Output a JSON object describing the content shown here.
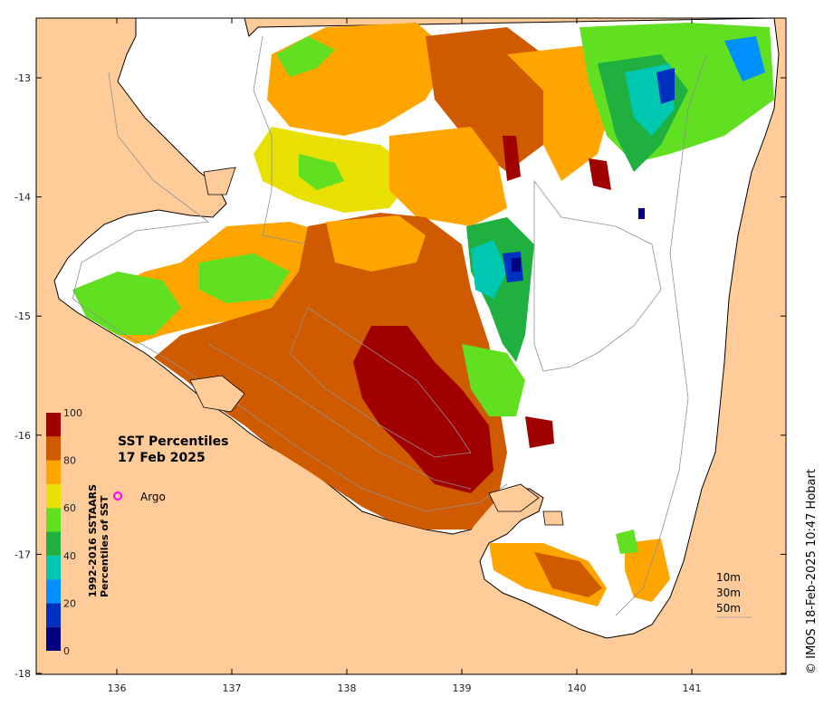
{
  "title_line1": "SST Percentiles",
  "title_line2": "17 Feb 2025",
  "legend_argo": "Argo",
  "argo_color": "#ff00ff",
  "colorbar": {
    "title_line1": "1992-2016 SSTAARS",
    "title_line2": "Percentiles of SST",
    "tick_labels": [
      "100",
      "80",
      "60",
      "40",
      "20",
      "0"
    ],
    "colors": [
      "#000080",
      "#0030c0",
      "#0090ff",
      "#00c8b0",
      "#20b040",
      "#60e020",
      "#e8e000",
      "#ffa500",
      "#d05a00",
      "#a00000"
    ]
  },
  "depth_contours": [
    "10m",
    "30m",
    "50m"
  ],
  "copyright": "© IMOS 18-Feb-2025 10:47 Hobart",
  "x_ticks": [
    "136",
    "137",
    "138",
    "139",
    "140",
    "141"
  ],
  "y_ticks": [
    "-13",
    "-14",
    "-15",
    "-16",
    "-17",
    "-18"
  ],
  "land_color": "#ffcc99",
  "map_data": {
    "lon_range": [
      135.3,
      141.8
    ],
    "lat_range": [
      -18.0,
      -12.5
    ]
  }
}
